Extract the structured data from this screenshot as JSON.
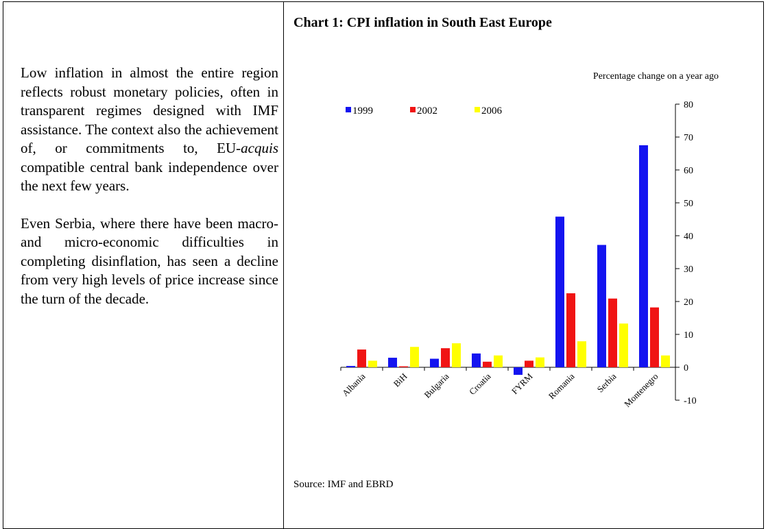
{
  "left_text": {
    "paragraph_1": [
      "Low inflation in almost the entire region reflects robust monetary policies, often in transparent regimes designed with IMF assistance. The context also the achievement of, or commitments to, EU-",
      "acquis",
      "compatible central bank independence over the next few years."
    ],
    "paragraph_2": "Even Serbia, where there have been macro- and micro-economic difficulties in completing disinflation, has seen a decline from very high levels of price increase since the turn of the decade."
  },
  "chart_data": {
    "type": "bar",
    "title": "Chart 1: CPI inflation in South East Europe",
    "subtitle": "Percentage change on a year ago",
    "source": "Source: IMF and EBRD",
    "categories": [
      "Albania",
      "BiH",
      "Bulgaria",
      "Croatia",
      "FYRM",
      "Romania",
      "Serbia",
      "Montenegro"
    ],
    "series": [
      {
        "name": "1999",
        "color": "#1414f0",
        "values": [
          0.4,
          2.9,
          2.6,
          4.2,
          -2.3,
          45.8,
          37.2,
          67.5
        ]
      },
      {
        "name": "2002",
        "color": "#f01414",
        "values": [
          5.4,
          0.3,
          5.8,
          1.7,
          2.0,
          22.5,
          20.9,
          18.2
        ]
      },
      {
        "name": "2006",
        "color": "#ffff00",
        "values": [
          2.0,
          6.2,
          7.3,
          3.6,
          3.0,
          7.9,
          13.3,
          3.6
        ]
      }
    ],
    "ylim": [
      -10,
      80
    ],
    "yticks": [
      -10,
      0,
      10,
      20,
      30,
      40,
      50,
      60,
      70,
      80
    ],
    "legend": "top-left",
    "grid": false
  }
}
